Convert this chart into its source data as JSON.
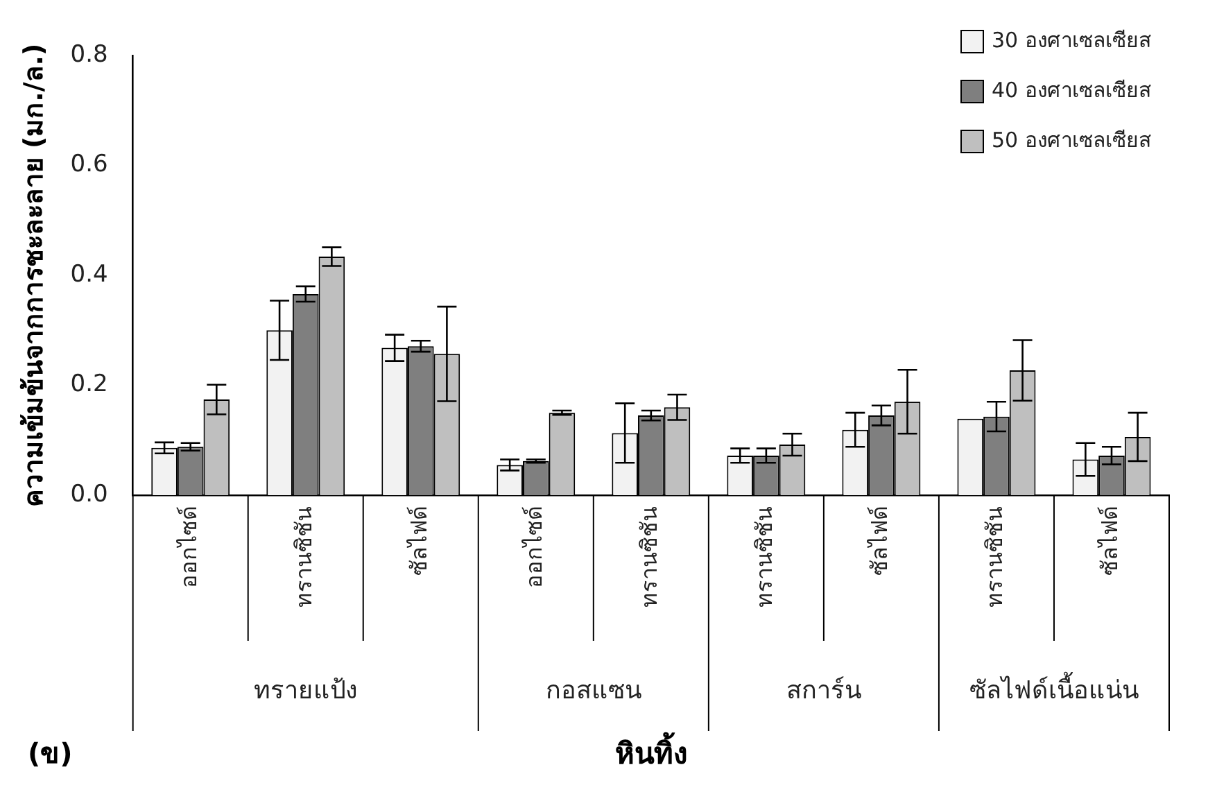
{
  "chart_data": {
    "type": "bar",
    "xlabel": "หินทิ้ง",
    "ylabel": "ความเข้มข้นจากการชะละลาย (มก./ล.)",
    "categories": [
      "ออกไซด์",
      "ทรานซิชัน",
      "ซัลไฟด์",
      "ออกไซด์",
      "ทรานซิชัน",
      "ทรานซิชัน",
      "ซัลไฟด์",
      "ทรานซิชัน",
      "ซัลไฟด์"
    ],
    "series": [
      {
        "name": "30 องศาเซลเซียส",
        "color": "#f2f2f2",
        "values": [
          0.086,
          0.3,
          0.268,
          0.055,
          0.113,
          0.072,
          0.119,
          0.139,
          0.065
        ],
        "errors": [
          0.01,
          0.054,
          0.024,
          0.01,
          0.054,
          0.013,
          0.031,
          null,
          0.03
        ]
      },
      {
        "name": "40 องศาเซลเซียส",
        "color": "#7f7f7f",
        "values": [
          0.088,
          0.366,
          0.271,
          0.062,
          0.145,
          0.072,
          0.145,
          0.143,
          0.072
        ],
        "errors": [
          0.007,
          0.014,
          0.01,
          0.003,
          0.009,
          0.013,
          0.018,
          0.027,
          0.016
        ]
      },
      {
        "name": "50 องศาเซลเซียส",
        "color": "#bfbfbf",
        "values": [
          0.174,
          0.434,
          0.257,
          0.15,
          0.16,
          0.092,
          0.17,
          0.227,
          0.106
        ],
        "errors": [
          0.027,
          0.017,
          0.086,
          0.004,
          0.023,
          0.02,
          0.058,
          0.055,
          0.044
        ]
      }
    ],
    "ylim": [
      0,
      0.8
    ],
    "yticks": [
      {
        "value": 0,
        "label": "0.0"
      },
      {
        "value": 0.2,
        "label": "0.2"
      },
      {
        "value": 0.4,
        "label": "0.4"
      },
      {
        "value": 0.6,
        "label": "0.6"
      },
      {
        "value": 0.8,
        "label": "0.8"
      }
    ],
    "grid": false,
    "legend": "top right",
    "annotations": [
      "ทรายแป้ง",
      "กอสแซน",
      "สการ์น",
      "ซัลไฟด์เนื้อแน่น",
      "(ข)"
    ]
  }
}
